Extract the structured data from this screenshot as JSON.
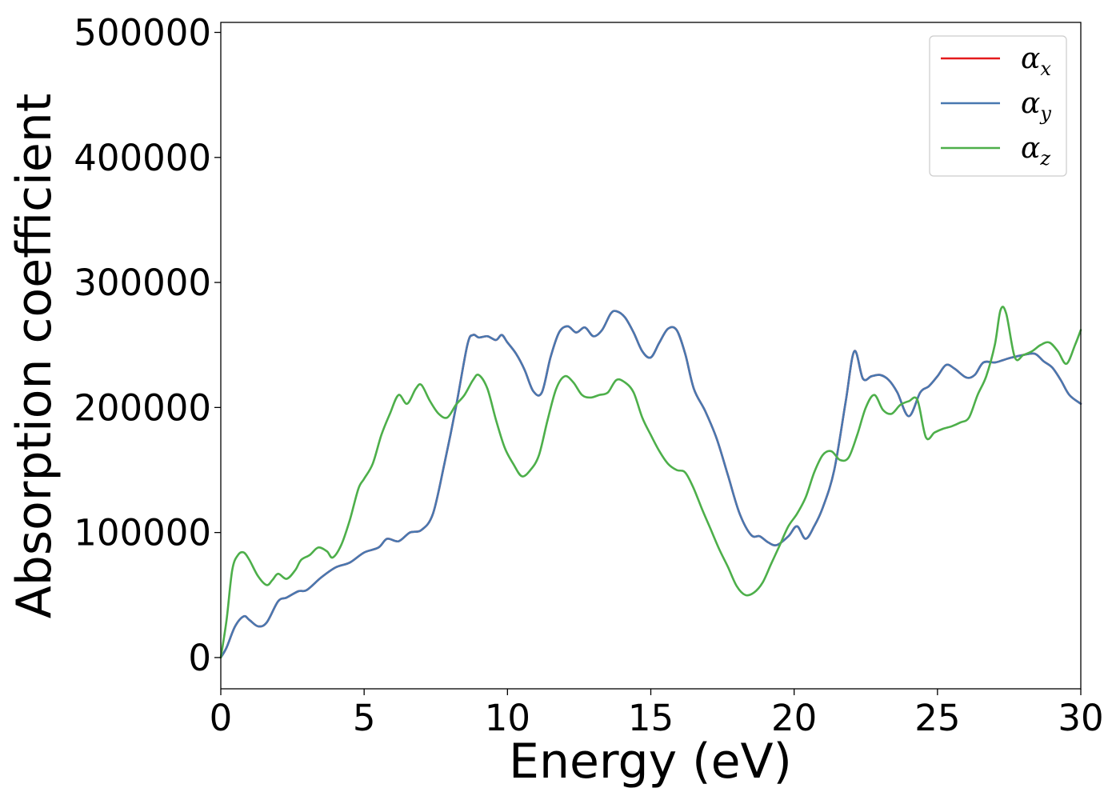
{
  "chart_data": {
    "type": "line",
    "title": "",
    "xlabel": "Energy (eV)",
    "ylabel": "Absorption coefficient",
    "xlim": [
      0,
      30
    ],
    "ylim": [
      -25000,
      508000
    ],
    "xticks": [
      0,
      5,
      10,
      15,
      20,
      25,
      30
    ],
    "yticks": [
      0,
      100000,
      200000,
      300000,
      400000,
      500000
    ],
    "xtick_labels": [
      "0",
      "5",
      "10",
      "15",
      "20",
      "25",
      "30"
    ],
    "ytick_labels": [
      "0",
      "100000",
      "200000",
      "300000",
      "400000",
      "500000"
    ],
    "grid": false,
    "legend_position": "top-right",
    "colors": {
      "alpha_x": "#e41a1c",
      "alpha_y": "#4878b0",
      "alpha_z": "#4daf4a"
    },
    "series": [
      {
        "name": "α_x",
        "legend_base": "α",
        "legend_sub": "x",
        "color": "#e41a1c",
        "x": [
          0,
          0.2,
          0.5,
          0.8,
          1.0,
          1.3,
          1.6,
          2.0,
          2.3,
          2.7,
          3.0,
          3.5,
          4.0,
          4.5,
          5.0,
          5.5,
          5.8,
          6.2,
          6.6,
          7.0,
          7.4,
          7.8,
          8.2,
          8.6,
          8.8,
          9.0,
          9.3,
          9.6,
          9.8,
          10.0,
          10.3,
          10.6,
          10.9,
          11.2,
          11.5,
          11.8,
          12.1,
          12.4,
          12.7,
          13.0,
          13.3,
          13.6,
          13.8,
          14.1,
          14.4,
          14.7,
          15.0,
          15.3,
          15.6,
          15.9,
          16.2,
          16.5,
          16.9,
          17.3,
          17.7,
          18.1,
          18.5,
          18.8,
          19.1,
          19.4,
          19.8,
          20.1,
          20.4,
          20.7,
          21.0,
          21.4,
          21.8,
          22.1,
          22.4,
          22.7,
          23.0,
          23.3,
          23.6,
          24.0,
          24.4,
          24.7,
          25.0,
          25.3,
          25.6,
          26.0,
          26.3,
          26.6,
          27.0,
          27.3,
          27.6,
          28.0,
          28.4,
          28.7,
          29.0,
          29.3,
          29.6,
          30.0
        ],
        "values": [
          0,
          8000,
          25000,
          33000,
          30000,
          25000,
          28000,
          45000,
          48000,
          53000,
          54000,
          64000,
          72000,
          76000,
          84000,
          88000,
          95000,
          93000,
          100000,
          102000,
          115000,
          155000,
          200000,
          250000,
          258000,
          256000,
          257000,
          254000,
          258000,
          252000,
          243000,
          230000,
          213000,
          212000,
          240000,
          260000,
          265000,
          260000,
          264000,
          257000,
          262000,
          275000,
          277000,
          272000,
          260000,
          245000,
          240000,
          252000,
          263000,
          262000,
          243000,
          215000,
          197000,
          175000,
          145000,
          115000,
          98000,
          97000,
          92000,
          90000,
          97000,
          105000,
          95000,
          105000,
          120000,
          150000,
          205000,
          245000,
          223000,
          225000,
          226000,
          222000,
          212000,
          193000,
          212000,
          217000,
          225000,
          234000,
          231000,
          224000,
          226000,
          236000,
          236000,
          238000,
          240000,
          242000,
          243000,
          237000,
          232000,
          222000,
          210000,
          203000
        ]
      },
      {
        "name": "α_y",
        "legend_base": "α",
        "legend_sub": "y",
        "color": "#4878b0",
        "x": [
          0,
          0.2,
          0.5,
          0.8,
          1.0,
          1.3,
          1.6,
          2.0,
          2.3,
          2.7,
          3.0,
          3.5,
          4.0,
          4.5,
          5.0,
          5.5,
          5.8,
          6.2,
          6.6,
          7.0,
          7.4,
          7.8,
          8.2,
          8.6,
          8.8,
          9.0,
          9.3,
          9.6,
          9.8,
          10.0,
          10.3,
          10.6,
          10.9,
          11.2,
          11.5,
          11.8,
          12.1,
          12.4,
          12.7,
          13.0,
          13.3,
          13.6,
          13.8,
          14.1,
          14.4,
          14.7,
          15.0,
          15.3,
          15.6,
          15.9,
          16.2,
          16.5,
          16.9,
          17.3,
          17.7,
          18.1,
          18.5,
          18.8,
          19.1,
          19.4,
          19.8,
          20.1,
          20.4,
          20.7,
          21.0,
          21.4,
          21.8,
          22.1,
          22.4,
          22.7,
          23.0,
          23.3,
          23.6,
          24.0,
          24.4,
          24.7,
          25.0,
          25.3,
          25.6,
          26.0,
          26.3,
          26.6,
          27.0,
          27.3,
          27.6,
          28.0,
          28.4,
          28.7,
          29.0,
          29.3,
          29.6,
          30.0
        ],
        "values": [
          0,
          8000,
          25000,
          33000,
          30000,
          25000,
          28000,
          45000,
          48000,
          53000,
          54000,
          64000,
          72000,
          76000,
          84000,
          88000,
          95000,
          93000,
          100000,
          102000,
          115000,
          155000,
          200000,
          250000,
          258000,
          256000,
          257000,
          254000,
          258000,
          252000,
          243000,
          230000,
          213000,
          212000,
          240000,
          260000,
          265000,
          260000,
          264000,
          257000,
          262000,
          275000,
          277000,
          272000,
          260000,
          245000,
          240000,
          252000,
          263000,
          262000,
          243000,
          215000,
          197000,
          175000,
          145000,
          115000,
          98000,
          97000,
          92000,
          90000,
          97000,
          105000,
          95000,
          105000,
          120000,
          150000,
          205000,
          245000,
          223000,
          225000,
          226000,
          222000,
          212000,
          193000,
          212000,
          217000,
          225000,
          234000,
          231000,
          224000,
          226000,
          236000,
          236000,
          238000,
          240000,
          242000,
          243000,
          237000,
          232000,
          222000,
          210000,
          203000
        ]
      },
      {
        "name": "α_z",
        "legend_base": "α",
        "legend_sub": "z",
        "color": "#4daf4a",
        "x": [
          0,
          0.2,
          0.4,
          0.6,
          0.8,
          1.0,
          1.3,
          1.6,
          1.8,
          2.0,
          2.3,
          2.6,
          2.8,
          3.1,
          3.4,
          3.7,
          3.9,
          4.2,
          4.5,
          4.8,
          5.0,
          5.3,
          5.6,
          5.9,
          6.2,
          6.5,
          6.8,
          7.0,
          7.3,
          7.6,
          7.9,
          8.2,
          8.5,
          8.8,
          9.0,
          9.3,
          9.6,
          9.9,
          10.2,
          10.5,
          10.8,
          11.1,
          11.4,
          11.7,
          12.0,
          12.3,
          12.6,
          12.9,
          13.2,
          13.5,
          13.8,
          14.1,
          14.4,
          14.7,
          15.0,
          15.3,
          15.6,
          15.9,
          16.2,
          16.5,
          16.8,
          17.1,
          17.4,
          17.7,
          18.0,
          18.3,
          18.6,
          18.9,
          19.2,
          19.5,
          19.8,
          20.1,
          20.4,
          20.7,
          21.0,
          21.3,
          21.6,
          21.9,
          22.2,
          22.5,
          22.8,
          23.1,
          23.4,
          23.7,
          24.0,
          24.3,
          24.6,
          24.9,
          25.2,
          25.5,
          25.8,
          26.1,
          26.4,
          26.7,
          27.0,
          27.2,
          27.4,
          27.7,
          28.0,
          28.3,
          28.6,
          28.9,
          29.2,
          29.5,
          29.8,
          30.0
        ],
        "values": [
          0,
          30000,
          70000,
          82000,
          84000,
          78000,
          65000,
          58000,
          62000,
          67000,
          63000,
          70000,
          78000,
          82000,
          88000,
          85000,
          80000,
          90000,
          110000,
          135000,
          143000,
          155000,
          178000,
          195000,
          210000,
          203000,
          215000,
          218000,
          205000,
          195000,
          192000,
          202000,
          210000,
          222000,
          226000,
          215000,
          190000,
          168000,
          155000,
          145000,
          150000,
          162000,
          190000,
          215000,
          225000,
          220000,
          210000,
          208000,
          210000,
          212000,
          222000,
          220000,
          212000,
          192000,
          178000,
          165000,
          155000,
          150000,
          148000,
          135000,
          118000,
          102000,
          86000,
          72000,
          57000,
          50000,
          52000,
          60000,
          75000,
          90000,
          105000,
          115000,
          128000,
          148000,
          162000,
          165000,
          158000,
          160000,
          178000,
          200000,
          210000,
          198000,
          195000,
          202000,
          205000,
          206000,
          176000,
          180000,
          183000,
          185000,
          188000,
          192000,
          210000,
          225000,
          250000,
          278000,
          275000,
          240000,
          242000,
          245000,
          250000,
          252000,
          245000,
          235000,
          250000,
          262000
        ]
      }
    ]
  }
}
